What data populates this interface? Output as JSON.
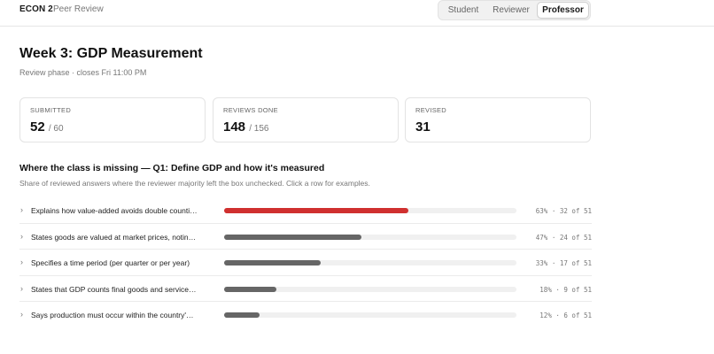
{
  "header": {
    "course": "ECON 2",
    "app_name": "Peer Review",
    "roles": [
      "Student",
      "Reviewer",
      "Professor"
    ],
    "active_role": "Professor"
  },
  "assignment": {
    "title": "Week 3: GDP Measurement",
    "subtitle": "Review phase · closes Fri 11:00 PM"
  },
  "stats": [
    {
      "label": "SUBMITTED",
      "value": "52",
      "total": "/ 60"
    },
    {
      "label": "REVIEWS DONE",
      "value": "148",
      "total": "/ 156"
    },
    {
      "label": "REVISED",
      "value": "31",
      "total": ""
    }
  ],
  "gaps": {
    "title": "Where the class is missing — Q1: Define GDP and how it's measured",
    "subtitle": "Share of reviewed answers where the reviewer majority left the box unchecked. Click a row for examples.",
    "highlight_color": "#d0302f",
    "default_color": "#666666",
    "rows": [
      {
        "label": "Explains how value-added avoids double counti…",
        "percent": 63,
        "stat": "63% · 32 of 51",
        "highlight": true
      },
      {
        "label": "States goods are valued at market prices, notin…",
        "percent": 47,
        "stat": "47% · 24 of 51",
        "highlight": false
      },
      {
        "label": "Specifies a time period (per quarter or per year)",
        "percent": 33,
        "stat": "33% · 17 of 51",
        "highlight": false
      },
      {
        "label": "States that GDP counts final goods and service…",
        "percent": 18,
        "stat": "18% · 9 of 51",
        "highlight": false
      },
      {
        "label": "Says production must occur within the country'…",
        "percent": 12,
        "stat": "12% · 6 of 51",
        "highlight": false
      }
    ]
  }
}
